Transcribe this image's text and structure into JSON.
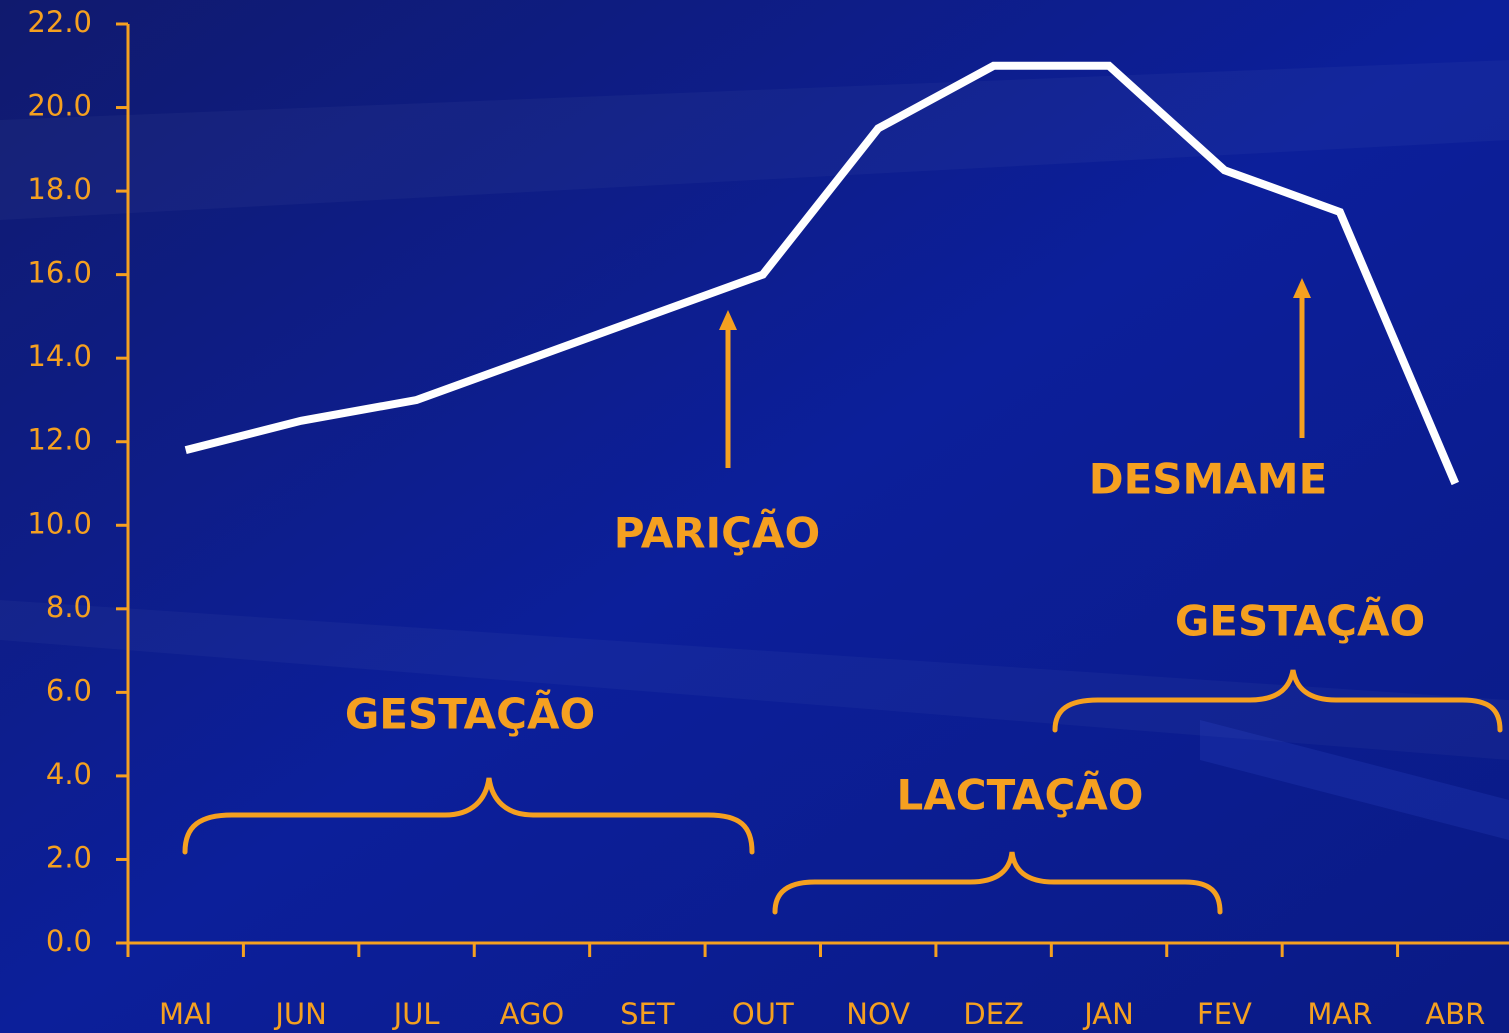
{
  "chart_data": {
    "type": "line",
    "categories": [
      "MAI",
      "JUN",
      "JUL",
      "AGO",
      "SET",
      "OUT",
      "NOV",
      "DEZ",
      "JAN",
      "FEV",
      "MAR",
      "ABR"
    ],
    "values": [
      11.8,
      12.5,
      13.0,
      14.0,
      15.0,
      16.0,
      19.5,
      21.0,
      21.0,
      18.5,
      17.5,
      11.0
    ],
    "color": "#ffffff",
    "axis_color": "#f5a020",
    "ylim": [
      0,
      22
    ],
    "yticks": [
      {
        "value": 0,
        "label": "0.0"
      },
      {
        "value": 2,
        "label": "2.0"
      },
      {
        "value": 4,
        "label": "4.0"
      },
      {
        "value": 6,
        "label": "6.0"
      },
      {
        "value": 8,
        "label": "8.0"
      },
      {
        "value": 10,
        "label": "10.0"
      },
      {
        "value": 12,
        "label": "12.0"
      },
      {
        "value": 14,
        "label": "14.0"
      },
      {
        "value": 16,
        "label": "16.0"
      },
      {
        "value": 18,
        "label": "18.0"
      },
      {
        "value": 20,
        "label": "20.0"
      },
      {
        "value": 22,
        "label": "22.0"
      }
    ],
    "grid": false,
    "annotations": [
      "PARIÇÃO",
      "DESMAME",
      "GESTAÇÃO",
      "GESTAÇÃO",
      "LACTAÇÃO"
    ]
  }
}
